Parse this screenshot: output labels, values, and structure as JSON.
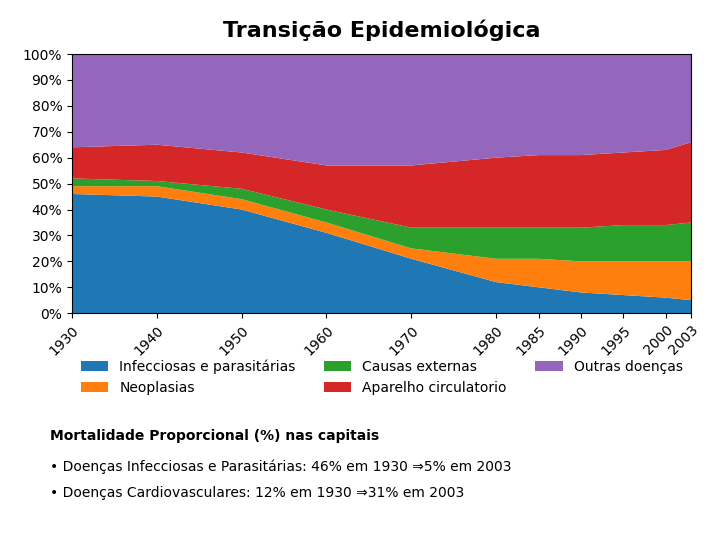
{
  "chart_data": {
    "type": "area",
    "stacked": true,
    "title": "Transição Epidemiológica",
    "subtitle": "Mortalidade Proporcional (%) nas capitais",
    "annotations": [
      "• Doenças Infecciosas e Parasitárias: 46% em 1930 ⇒5% em 2003",
      "• Doenças Cardiovasculares: 12% em 1930 ⇒31% em 2003"
    ],
    "x": [
      1930,
      1940,
      1950,
      1960,
      1970,
      1980,
      1985,
      1990,
      1995,
      2000,
      2003
    ],
    "series": [
      {
        "name": "Infecciosas e parasitárias",
        "values": [
          46,
          45,
          40,
          31,
          21,
          12,
          10,
          8,
          7,
          6,
          5
        ]
      },
      {
        "name": "Neoplasias",
        "values": [
          3,
          4,
          4,
          4,
          4,
          9,
          11,
          12,
          13,
          14,
          15
        ]
      },
      {
        "name": "Causas externas",
        "values": [
          3,
          2,
          4,
          5,
          8,
          12,
          12,
          13,
          14,
          14,
          15
        ]
      },
      {
        "name": "Aparelho circulatorio",
        "values": [
          12,
          14,
          14,
          17,
          24,
          27,
          28,
          28,
          28,
          29,
          31
        ]
      },
      {
        "name": "Outras doenças",
        "values": [
          36,
          35,
          38,
          43,
          43,
          40,
          39,
          39,
          38,
          37,
          34
        ]
      }
    ],
    "xlim": [
      1930,
      2003
    ],
    "xticks": [
      1930,
      1940,
      1950,
      1960,
      1970,
      1980,
      1985,
      1990,
      1995,
      2000,
      2003
    ],
    "ylim": [
      0,
      100
    ],
    "yticks": [
      {
        "value": 0,
        "label": "0%"
      },
      {
        "value": 10,
        "label": "10%"
      },
      {
        "value": 20,
        "label": "20%"
      },
      {
        "value": 30,
        "label": "30%"
      },
      {
        "value": 40,
        "label": "40%"
      },
      {
        "value": 50,
        "label": "50%"
      },
      {
        "value": 60,
        "label": "60%"
      },
      {
        "value": 70,
        "label": "70%"
      },
      {
        "value": 80,
        "label": "80%"
      },
      {
        "value": 90,
        "label": "90%"
      },
      {
        "value": 100,
        "label": "100%"
      }
    ],
    "grid": false,
    "legend": "upper center"
  }
}
